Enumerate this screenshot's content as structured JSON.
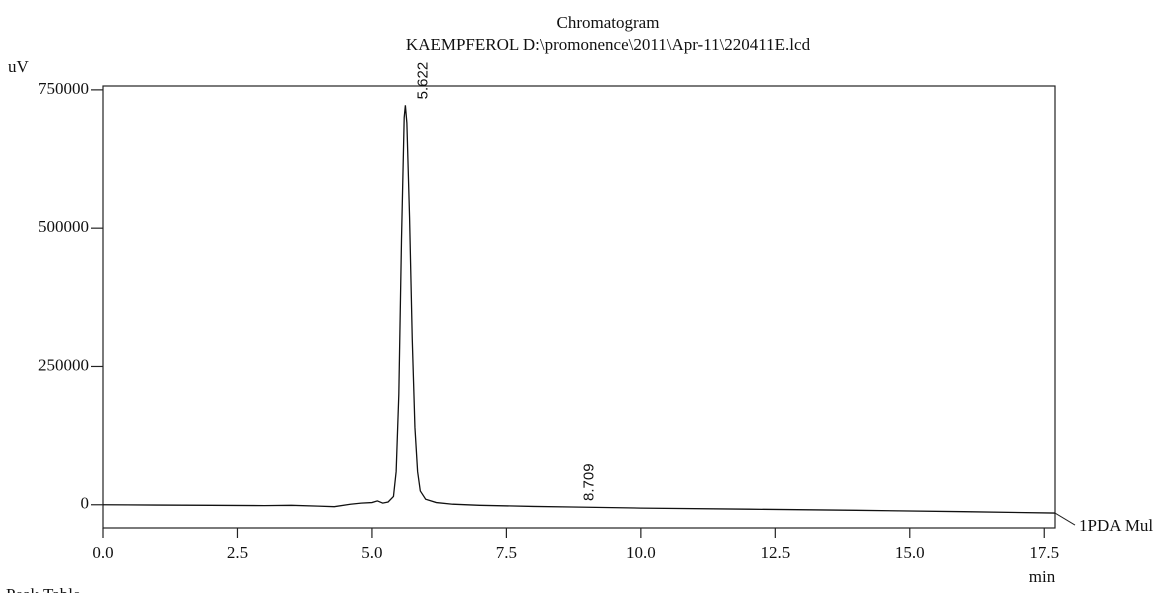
{
  "chart_data": {
    "type": "line",
    "title": "Chromatogram",
    "subtitle": "KAEMPFEROL D:\\promonence\\2011\\Apr-11\\220411E.lcd",
    "y_label": "uV",
    "x_label": "min",
    "footer": "Peak Table",
    "x": [
      0,
      1,
      2,
      3,
      3.5,
      4,
      4.3,
      4.6,
      4.8,
      5.0,
      5.1,
      5.2,
      5.3,
      5.4,
      5.45,
      5.5,
      5.55,
      5.6,
      5.622,
      5.65,
      5.7,
      5.75,
      5.8,
      5.85,
      5.9,
      6.0,
      6.2,
      6.5,
      7,
      8,
      8.709,
      10,
      12,
      14,
      16,
      17.7
    ],
    "series": [
      {
        "name": "1PDA Mul",
        "color": "#111111",
        "values": [
          0,
          -500,
          -1000,
          -1500,
          -1000,
          -2500,
          -3500,
          1000,
          3000,
          4000,
          7000,
          3000,
          5000,
          15000,
          60000,
          200000,
          480000,
          700000,
          722000,
          690000,
          520000,
          300000,
          140000,
          60000,
          25000,
          10000,
          4000,
          1000,
          -1000,
          -3000,
          -4000,
          -6000,
          -8000,
          -10000,
          -12500,
          -15000
        ]
      }
    ],
    "annotations": [
      {
        "text": "5.622",
        "x": 5.622,
        "y": 722000
      },
      {
        "text": "8.709",
        "x": 8.709,
        "y": -4000
      }
    ],
    "xlim": [
      0,
      17.7
    ],
    "ylim": [
      -42000,
      757000
    ],
    "xticks": [
      {
        "value": 0,
        "label": "0.0"
      },
      2.5,
      {
        "value": 5,
        "label": "5.0"
      },
      7.5,
      {
        "value": 10,
        "label": "10.0"
      },
      12.5,
      {
        "value": 15,
        "label": "15.0"
      },
      17.5
    ],
    "yticks": [
      0,
      250000,
      500000,
      750000
    ]
  }
}
